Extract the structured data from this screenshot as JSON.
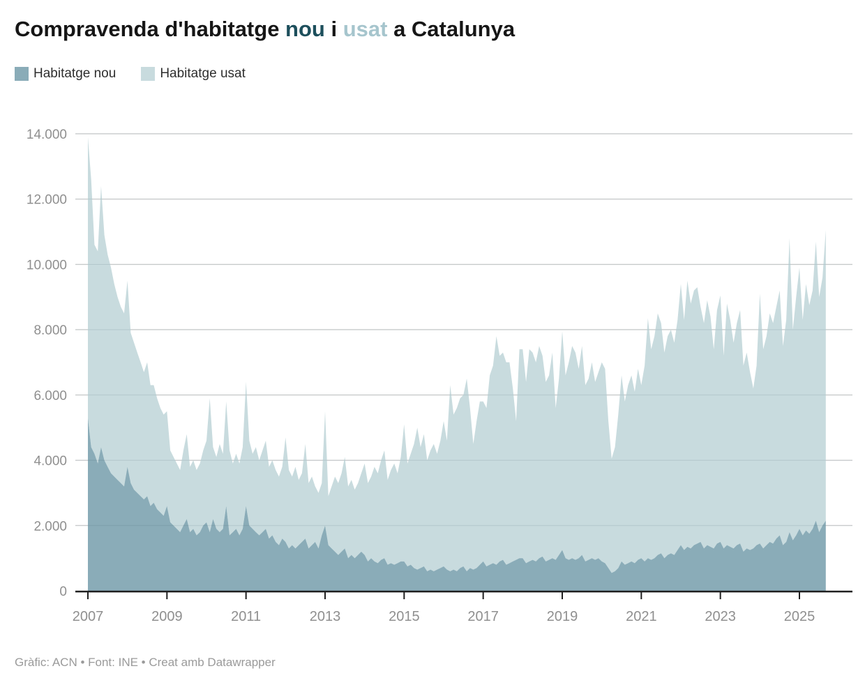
{
  "title": {
    "part1": "Compravenda d'habitatge ",
    "accent_nou": "nou",
    "part2": " i ",
    "accent_usat": "usat",
    "part3": " a Catalunya",
    "accent_nou_color": "#1d4f5c",
    "accent_usat_color": "#a6c5cd"
  },
  "legend": [
    {
      "label": "Habitatge nou",
      "color": "#8aacb8"
    },
    {
      "label": "Habitatge usat",
      "color": "#c8dbde"
    }
  ],
  "footer": {
    "credit": "Gràfic: ACN • Font: INE • Creat amb Datawrapper"
  },
  "chart_data": {
    "type": "area",
    "stacked": true,
    "title": "Compravenda d'habitatge nou i usat a Catalunya",
    "x_start": "2007-01",
    "x_end": "2025-09",
    "x_frequency": "monthly",
    "x_tick_years": [
      2007,
      2009,
      2011,
      2013,
      2015,
      2017,
      2019,
      2021,
      2023,
      2025
    ],
    "y_ticks": [
      0,
      2000,
      4000,
      6000,
      8000,
      10000,
      12000,
      14000
    ],
    "y_tick_labels": [
      "0",
      "2.000",
      "4.000",
      "6.000",
      "8.000",
      "10.000",
      "12.000",
      "14.000"
    ],
    "ylim": [
      0,
      14000
    ],
    "grid": true,
    "legend_position": "top-left",
    "colors": {
      "nou": "#8aacb8",
      "usat": "#c8dbde",
      "gridline": "#dcdcdc",
      "axis": "#1f1f1f"
    },
    "series": [
      {
        "name": "Habitatge nou",
        "color": "#8aacb8",
        "values": [
          5300,
          4400,
          4200,
          3900,
          4400,
          4000,
          3800,
          3600,
          3500,
          3400,
          3300,
          3200,
          3800,
          3300,
          3100,
          3000,
          2900,
          2800,
          2900,
          2600,
          2700,
          2500,
          2400,
          2300,
          2600,
          2100,
          2000,
          1900,
          1800,
          2000,
          2200,
          1800,
          1900,
          1700,
          1800,
          2000,
          2100,
          1800,
          2200,
          1900,
          1800,
          1900,
          2600,
          1700,
          1800,
          1900,
          1700,
          1900,
          2600,
          2000,
          1900,
          1800,
          1700,
          1800,
          1900,
          1600,
          1700,
          1500,
          1400,
          1600,
          1500,
          1300,
          1400,
          1300,
          1400,
          1500,
          1600,
          1300,
          1400,
          1500,
          1300,
          1700,
          2000,
          1400,
          1300,
          1200,
          1100,
          1200,
          1300,
          1000,
          1100,
          1000,
          1100,
          1200,
          1100,
          900,
          1000,
          900,
          850,
          950,
          1000,
          800,
          850,
          800,
          850,
          900,
          900,
          750,
          800,
          700,
          650,
          700,
          750,
          600,
          650,
          600,
          650,
          700,
          750,
          650,
          600,
          650,
          600,
          700,
          750,
          600,
          700,
          650,
          700,
          800,
          900,
          750,
          800,
          850,
          800,
          900,
          950,
          800,
          850,
          900,
          950,
          1000,
          1000,
          850,
          900,
          950,
          900,
          1000,
          1050,
          900,
          950,
          1000,
          950,
          1100,
          1250,
          1000,
          950,
          1000,
          950,
          1000,
          1100,
          900,
          950,
          1000,
          950,
          1000,
          900,
          850,
          700,
          550,
          600,
          700,
          900,
          800,
          850,
          900,
          850,
          950,
          1000,
          900,
          1000,
          950,
          1000,
          1100,
          1150,
          1000,
          1100,
          1150,
          1100,
          1250,
          1400,
          1250,
          1350,
          1300,
          1400,
          1450,
          1500,
          1300,
          1400,
          1350,
          1300,
          1450,
          1500,
          1300,
          1400,
          1350,
          1300,
          1400,
          1450,
          1200,
          1300,
          1250,
          1300,
          1400,
          1450,
          1300,
          1400,
          1500,
          1450,
          1600,
          1700,
          1400,
          1500,
          1800,
          1550,
          1700,
          1900,
          1700,
          1850,
          1750,
          1900,
          2150,
          1800,
          2000,
          2150
        ]
      },
      {
        "name": "Habitatge usat",
        "color": "#c8dbde",
        "values": [
          8600,
          8200,
          6400,
          6500,
          8000,
          6900,
          6500,
          6300,
          5900,
          5600,
          5400,
          5300,
          5700,
          4600,
          4500,
          4300,
          4100,
          3900,
          4100,
          3700,
          3600,
          3400,
          3200,
          3100,
          2900,
          2200,
          2100,
          2000,
          1900,
          2300,
          2600,
          2000,
          2100,
          2000,
          2100,
          2300,
          2500,
          4100,
          2200,
          2200,
          2700,
          2300,
          3200,
          2600,
          2100,
          2300,
          2200,
          2500,
          3800,
          2600,
          2300,
          2600,
          2300,
          2500,
          2700,
          2200,
          2300,
          2200,
          2100,
          2200,
          3200,
          2400,
          2100,
          2500,
          2000,
          2100,
          2900,
          2000,
          2100,
          1700,
          1700,
          1600,
          3500,
          1500,
          1900,
          2300,
          2200,
          2400,
          2800,
          2200,
          2300,
          2100,
          2200,
          2400,
          2800,
          2400,
          2500,
          2900,
          2750,
          3050,
          3300,
          2600,
          2850,
          3100,
          2750,
          3200,
          4200,
          3150,
          3400,
          3800,
          4350,
          3700,
          4050,
          3400,
          3650,
          3900,
          3550,
          3900,
          4450,
          3950,
          5700,
          4750,
          5000,
          5200,
          5250,
          5900,
          4900,
          3850,
          4500,
          5000,
          4900,
          4850,
          5800,
          6050,
          7000,
          6300,
          6350,
          6200,
          6150,
          5300,
          4250,
          6400,
          6400,
          5550,
          6500,
          6350,
          6100,
          6500,
          6150,
          5500,
          5650,
          6300,
          4650,
          5400,
          6700,
          5600,
          6050,
          6500,
          6350,
          5800,
          6400,
          5400,
          5550,
          6000,
          5450,
          5700,
          6100,
          5950,
          4500,
          3500,
          3800,
          4700,
          5700,
          5000,
          5450,
          5700,
          5250,
          5850,
          5300,
          6000,
          7350,
          6450,
          6800,
          7400,
          7050,
          6300,
          6700,
          6850,
          6500,
          7050,
          8000,
          7050,
          8150,
          7500,
          7800,
          7850,
          7200,
          6900,
          7500,
          7050,
          6100,
          7150,
          7550,
          5900,
          7400,
          6950,
          6300,
          6800,
          7150,
          5700,
          6000,
          5450,
          4900,
          5500,
          7650,
          6100,
          6400,
          7000,
          6750,
          7100,
          7500,
          6100,
          6800,
          9000,
          6450,
          7300,
          8000,
          6600,
          7550,
          7000,
          7300,
          8550,
          7200,
          7600,
          8900
        ]
      }
    ]
  }
}
